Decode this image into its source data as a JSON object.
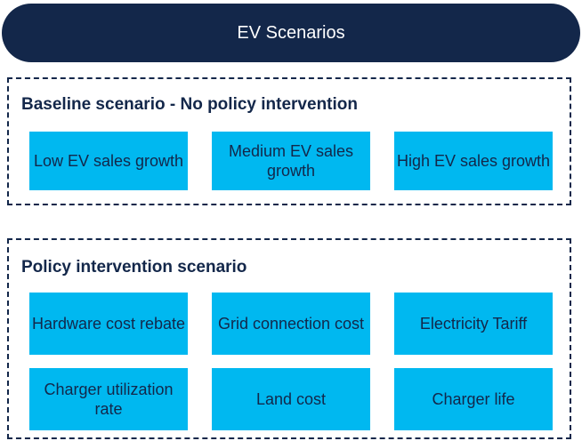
{
  "header": {
    "title": "EV Scenarios"
  },
  "groups": [
    {
      "title": "Baseline scenario - No policy intervention",
      "items": [
        "Low EV sales growth",
        "Medium EV sales growth",
        "High EV sales growth"
      ]
    },
    {
      "title": "Policy intervention scenario",
      "items": [
        "Hardware cost rebate",
        "Grid connection cost",
        "Electricity Tariff",
        "Charger utilization rate",
        "Land cost",
        "Charger life"
      ]
    }
  ]
}
